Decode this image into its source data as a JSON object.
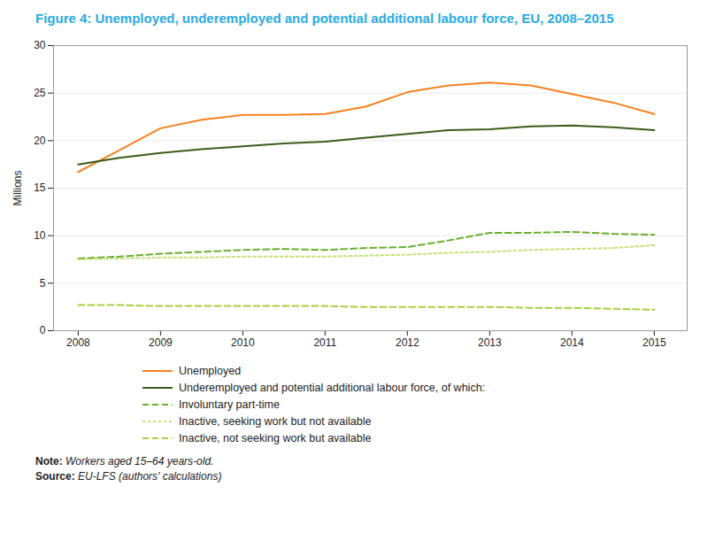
{
  "chart_data": {
    "type": "line",
    "title": "Figure 4: Unemployed, underemployed and potential additional labour force, EU, 2008–2015",
    "title_color": "#29ABE2",
    "ylabel": "Millions",
    "x": [
      2008,
      2008.5,
      2009,
      2009.5,
      2010,
      2010.5,
      2011,
      2011.5,
      2012,
      2012.5,
      2013,
      2013.5,
      2014,
      2014.5,
      2015
    ],
    "series": [
      {
        "name": "Unemployed",
        "color": "#F5821F",
        "line_style": "solid",
        "values": [
          16.7,
          19.0,
          21.3,
          22.2,
          22.7,
          22.7,
          22.8,
          23.6,
          25.1,
          25.8,
          26.1,
          25.8,
          24.9,
          24.0,
          22.8
        ]
      },
      {
        "name": "Underemployed and potential additional labour force, of which:",
        "color": "#3B5C1A",
        "line_style": "solid",
        "values": [
          17.5,
          18.2,
          18.7,
          19.1,
          19.4,
          19.7,
          19.9,
          20.3,
          20.7,
          21.1,
          21.2,
          21.5,
          21.6,
          21.4,
          21.1
        ]
      },
      {
        "name": "Involuntary part-time",
        "color": "#6AAF2E",
        "line_style": "dashed",
        "values": [
          7.6,
          7.8,
          8.1,
          8.3,
          8.5,
          8.6,
          8.5,
          8.7,
          8.8,
          9.5,
          10.3,
          10.3,
          10.4,
          10.2,
          10.1
        ]
      },
      {
        "name": "Inactive, seeking work but not available",
        "color": "#C8E07A",
        "line_style": "dotted",
        "values": [
          7.5,
          7.6,
          7.7,
          7.7,
          7.8,
          7.8,
          7.8,
          7.9,
          8.0,
          8.2,
          8.3,
          8.5,
          8.6,
          8.7,
          9.0
        ]
      },
      {
        "name": "Inactive, not seeking work but available",
        "color": "#A8D040",
        "line_style": "dashed",
        "values": [
          2.7,
          2.7,
          2.6,
          2.6,
          2.6,
          2.6,
          2.6,
          2.5,
          2.5,
          2.5,
          2.5,
          2.4,
          2.4,
          2.3,
          2.2
        ]
      }
    ],
    "xlim": [
      2007.7,
      2015.4
    ],
    "xticks": [
      2008,
      2009,
      2010,
      2011,
      2012,
      2013,
      2014,
      2015
    ],
    "ylim": [
      0,
      30
    ],
    "yticks": [
      0,
      5,
      10,
      15,
      20,
      25,
      30
    ],
    "grid": "y",
    "legend": "bottom",
    "annotations": [
      {
        "label": "Note:",
        "text": "Workers aged 15–64 years-old."
      },
      {
        "label": "Source:",
        "text": "EU-LFS (authors' calculations)"
      }
    ]
  }
}
